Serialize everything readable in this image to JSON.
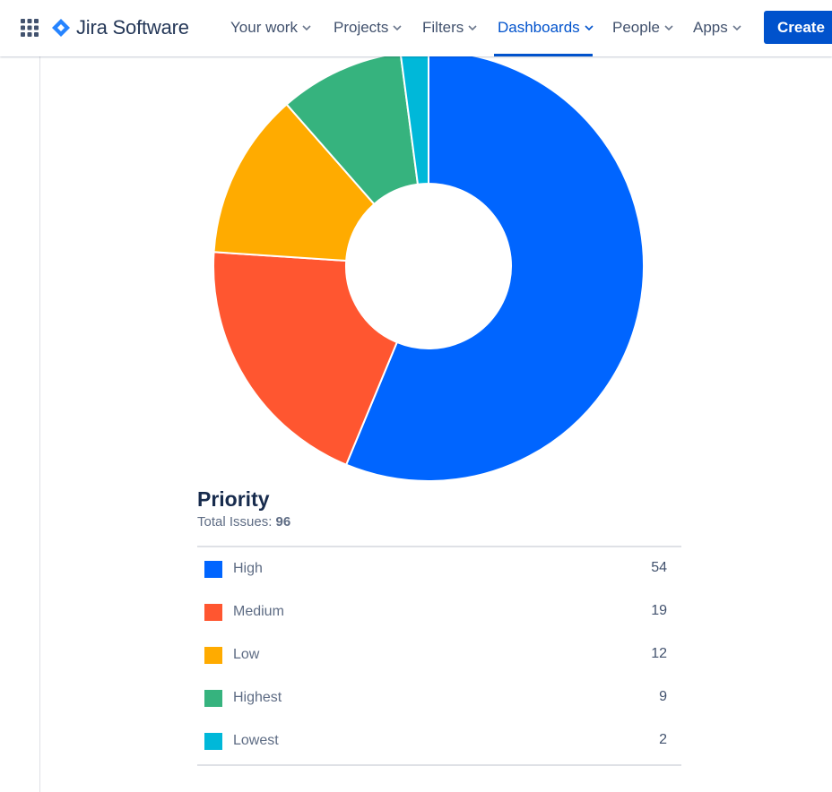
{
  "nav": {
    "brand": "Jira Software",
    "items": [
      {
        "label": "Your work"
      },
      {
        "label": "Projects"
      },
      {
        "label": "Filters"
      },
      {
        "label": "Dashboards",
        "active": true
      },
      {
        "label": "People"
      },
      {
        "label": "Apps"
      }
    ],
    "create_label": "Create"
  },
  "gadget": {
    "title": "Priority",
    "total_label": "Total Issues:",
    "total_value": "96"
  },
  "chart_data": {
    "type": "pie",
    "donut": true,
    "title": "Priority",
    "total": 96,
    "categories": [
      "High",
      "Medium",
      "Low",
      "Highest",
      "Lowest"
    ],
    "values": [
      54,
      19,
      12,
      9,
      2
    ],
    "colors": [
      "#0065ff",
      "#ff5630",
      "#ffab00",
      "#36b37e",
      "#00b8d9"
    ],
    "legend": [
      {
        "label": "High",
        "count": "54",
        "color": "#0065ff"
      },
      {
        "label": "Medium",
        "count": "19",
        "color": "#ff5630"
      },
      {
        "label": "Low",
        "count": "12",
        "color": "#ffab00"
      },
      {
        "label": "Highest",
        "count": "9",
        "color": "#36b37e"
      },
      {
        "label": "Lowest",
        "count": "2",
        "color": "#00b8d9"
      }
    ]
  },
  "theme": {
    "accent": "#0052cc",
    "text_dark": "#172b4d",
    "text_subtle": "#5e6c84"
  }
}
